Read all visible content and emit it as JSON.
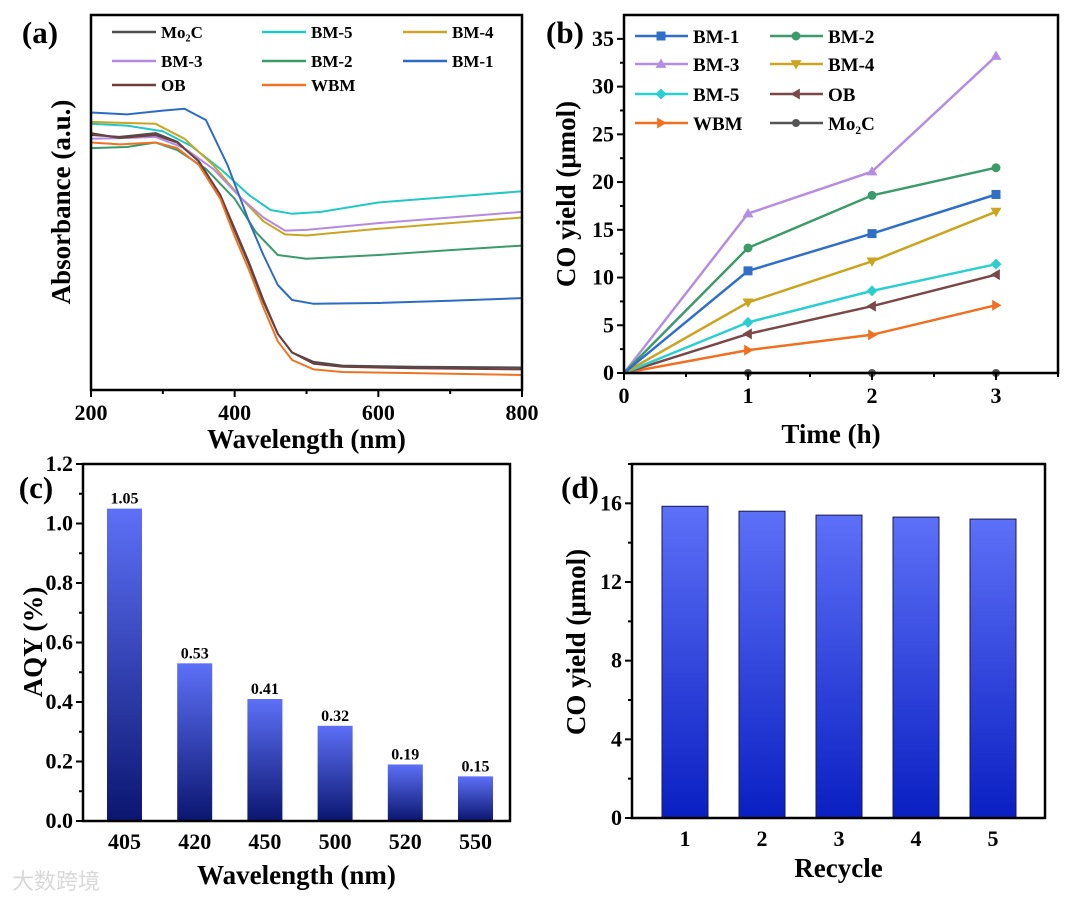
{
  "watermark": "大数跨境",
  "chart_data": [
    {
      "panel": "(a)",
      "type": "line",
      "xlabel": "Wavelength (nm)",
      "ylabel": "Absorbance (a.u.)",
      "xlim": [
        200,
        800
      ],
      "ylim": [
        0,
        1
      ],
      "xticks": [
        200,
        400,
        600,
        800
      ],
      "xtick_labels": [
        "200",
        "400",
        "600",
        "800"
      ],
      "legend_placement": "top",
      "series": [
        {
          "name": "Mo₂C",
          "color": "#4d4d4d",
          "points": [
            [
              200,
              0.68
            ],
            [
              240,
              0.675
            ],
            [
              290,
              0.685
            ],
            [
              320,
              0.662
            ],
            [
              350,
              0.61
            ],
            [
              380,
              0.52
            ],
            [
              400,
              0.425
            ],
            [
              420,
              0.335
            ],
            [
              440,
              0.235
            ],
            [
              460,
              0.15
            ],
            [
              480,
              0.1
            ],
            [
              510,
              0.075
            ],
            [
              550,
              0.065
            ],
            [
              650,
              0.062
            ],
            [
              800,
              0.06
            ]
          ]
        },
        {
          "name": "BM-5",
          "color": "#22c8c2",
          "points": [
            [
              200,
              0.71
            ],
            [
              250,
              0.705
            ],
            [
              300,
              0.69
            ],
            [
              340,
              0.65
            ],
            [
              380,
              0.59
            ],
            [
              420,
              0.52
            ],
            [
              450,
              0.48
            ],
            [
              480,
              0.47
            ],
            [
              520,
              0.475
            ],
            [
              600,
              0.5
            ],
            [
              700,
              0.515
            ],
            [
              800,
              0.53
            ]
          ]
        },
        {
          "name": "BM-4",
          "color": "#c9a521",
          "points": [
            [
              200,
              0.715
            ],
            [
              250,
              0.712
            ],
            [
              290,
              0.71
            ],
            [
              330,
              0.67
            ],
            [
              370,
              0.6
            ],
            [
              410,
              0.51
            ],
            [
              440,
              0.45
            ],
            [
              470,
              0.415
            ],
            [
              500,
              0.412
            ],
            [
              600,
              0.43
            ],
            [
              700,
              0.445
            ],
            [
              800,
              0.46
            ]
          ]
        },
        {
          "name": "BM-3",
          "color": "#b48be0",
          "points": [
            [
              200,
              0.67
            ],
            [
              250,
              0.672
            ],
            [
              290,
              0.675
            ],
            [
              330,
              0.645
            ],
            [
              370,
              0.59
            ],
            [
              410,
              0.51
            ],
            [
              440,
              0.46
            ],
            [
              470,
              0.425
            ],
            [
              500,
              0.427
            ],
            [
              600,
              0.445
            ],
            [
              700,
              0.46
            ],
            [
              800,
              0.475
            ]
          ]
        },
        {
          "name": "BM-2",
          "color": "#3c9a6b",
          "points": [
            [
              200,
              0.645
            ],
            [
              250,
              0.648
            ],
            [
              290,
              0.66
            ],
            [
              320,
              0.64
            ],
            [
              360,
              0.59
            ],
            [
              400,
              0.51
            ],
            [
              430,
              0.42
            ],
            [
              460,
              0.36
            ],
            [
              500,
              0.35
            ],
            [
              600,
              0.36
            ],
            [
              700,
              0.373
            ],
            [
              800,
              0.385
            ]
          ]
        },
        {
          "name": "BM-1",
          "color": "#2d6cc2",
          "points": [
            [
              200,
              0.74
            ],
            [
              250,
              0.735
            ],
            [
              300,
              0.745
            ],
            [
              330,
              0.75
            ],
            [
              360,
              0.72
            ],
            [
              390,
              0.6
            ],
            [
              420,
              0.45
            ],
            [
              440,
              0.36
            ],
            [
              460,
              0.28
            ],
            [
              480,
              0.24
            ],
            [
              510,
              0.23
            ],
            [
              600,
              0.232
            ],
            [
              700,
              0.238
            ],
            [
              800,
              0.245
            ]
          ]
        },
        {
          "name": "OB",
          "color": "#6e3f3f",
          "points": [
            [
              200,
              0.685
            ],
            [
              240,
              0.672
            ],
            [
              290,
              0.68
            ],
            [
              320,
              0.66
            ],
            [
              350,
              0.61
            ],
            [
              380,
              0.52
            ],
            [
              400,
              0.43
            ],
            [
              420,
              0.34
            ],
            [
              440,
              0.24
            ],
            [
              460,
              0.15
            ],
            [
              480,
              0.1
            ],
            [
              510,
              0.07
            ],
            [
              550,
              0.062
            ],
            [
              650,
              0.058
            ],
            [
              800,
              0.055
            ]
          ]
        },
        {
          "name": "WBM",
          "color": "#ee7424",
          "points": [
            [
              200,
              0.66
            ],
            [
              240,
              0.655
            ],
            [
              290,
              0.66
            ],
            [
              320,
              0.645
            ],
            [
              350,
              0.6
            ],
            [
              380,
              0.51
            ],
            [
              400,
              0.41
            ],
            [
              420,
              0.32
            ],
            [
              440,
              0.22
            ],
            [
              460,
              0.13
            ],
            [
              480,
              0.08
            ],
            [
              510,
              0.055
            ],
            [
              550,
              0.048
            ],
            [
              650,
              0.045
            ],
            [
              800,
              0.04
            ]
          ]
        }
      ]
    },
    {
      "panel": "(b)",
      "type": "line",
      "xlabel": "Time (h)",
      "ylabel": "CO yield (μmol)",
      "xlim": [
        0,
        3.5
      ],
      "ylim": [
        0,
        37.5
      ],
      "xticks": [
        0,
        1,
        2,
        3
      ],
      "xtick_labels": [
        "0",
        "1",
        "2",
        "3"
      ],
      "yticks": [
        0,
        5,
        10,
        15,
        20,
        25,
        30,
        35
      ],
      "ytick_labels": [
        "0",
        "5",
        "10",
        "15",
        "20",
        "25",
        "30",
        "35"
      ],
      "x": [
        0,
        1,
        2,
        3
      ],
      "legend_placement": "top-left",
      "series": [
        {
          "name": "BM-1",
          "color": "#2f6fc8",
          "marker": "square",
          "values": [
            0,
            10.7,
            14.6,
            18.7
          ]
        },
        {
          "name": "BM-2",
          "color": "#3c9b6b",
          "marker": "circle",
          "values": [
            0,
            13.1,
            18.6,
            21.5
          ]
        },
        {
          "name": "BM-3",
          "color": "#b48ee0",
          "marker": "triangle-up",
          "values": [
            0,
            16.7,
            21.1,
            33.2
          ]
        },
        {
          "name": "BM-4",
          "color": "#c9a520",
          "marker": "triangle-down",
          "values": [
            0,
            7.4,
            11.7,
            16.9
          ]
        },
        {
          "name": "BM-5",
          "color": "#2ccfd0",
          "marker": "diamond",
          "values": [
            0,
            5.3,
            8.6,
            11.4
          ]
        },
        {
          "name": "OB",
          "color": "#7a4848",
          "marker": "triangle-left",
          "values": [
            0,
            4.1,
            7.0,
            10.3
          ]
        },
        {
          "name": "WBM",
          "color": "#f07020",
          "marker": "triangle-right",
          "values": [
            0,
            2.4,
            4.0,
            7.1
          ]
        },
        {
          "name": "Mo₂C",
          "color": "#555555",
          "marker": "hexagon",
          "values": [
            0,
            0,
            0,
            0
          ]
        }
      ]
    },
    {
      "panel": "(c)",
      "type": "bar",
      "xlabel": "Wavelength (nm)",
      "ylabel": "AQY (%)",
      "ylim": [
        0,
        1.2
      ],
      "yticks": [
        0,
        0.2,
        0.4,
        0.6,
        0.8,
        1.0,
        1.2
      ],
      "ytick_labels": [
        "0.0",
        "0.2",
        "0.4",
        "0.6",
        "0.8",
        "1.0",
        "1.2"
      ],
      "categories": [
        "405",
        "420",
        "450",
        "500",
        "520",
        "550"
      ],
      "values": [
        1.05,
        0.53,
        0.41,
        0.32,
        0.19,
        0.15
      ],
      "data_labels": [
        "1.05",
        "0.53",
        "0.41",
        "0.32",
        "0.19",
        "0.15"
      ],
      "color_top": "#5d70f7",
      "color_bottom": "#0b1670"
    },
    {
      "panel": "(d)",
      "type": "bar",
      "xlabel": "Recycle",
      "ylabel": "CO yield (μmol)",
      "ylim": [
        0,
        18
      ],
      "yticks": [
        0,
        4,
        8,
        12,
        16
      ],
      "ytick_labels": [
        "0",
        "4",
        "8",
        "12",
        "16"
      ],
      "categories": [
        "1",
        "2",
        "3",
        "4",
        "5"
      ],
      "values": [
        15.85,
        15.6,
        15.4,
        15.3,
        15.2
      ],
      "color_top": "#5d70f8",
      "color_bottom": "#0a1fc2"
    }
  ]
}
